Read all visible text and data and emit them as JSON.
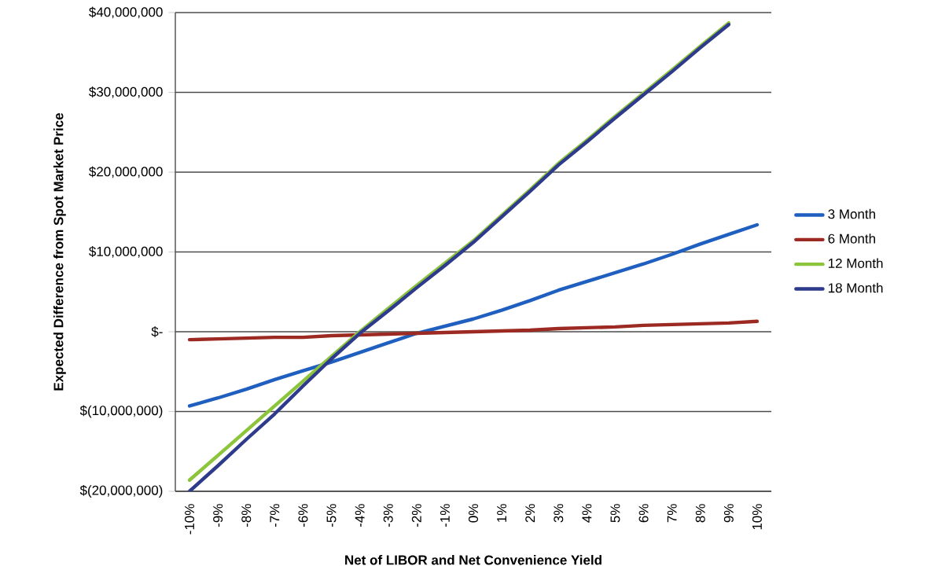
{
  "chart_data": {
    "type": "line",
    "xlabel": "Net of LIBOR and Net Convenience Yield",
    "ylabel": "Expected Difference from Spot Market Price",
    "categories": [
      "-10%",
      "-9%",
      "-8%",
      "-7%",
      "-6%",
      "-5%",
      "-4%",
      "-3%",
      "-2%",
      "-1%",
      "0%",
      "1%",
      "2%",
      "3%",
      "4%",
      "5%",
      "6%",
      "7%",
      "8%",
      "9%",
      "10%"
    ],
    "series": [
      {
        "name": "3 Month",
        "color": "#1f5fbf",
        "values": [
          -9300000,
          -8300000,
          -7200000,
          -6000000,
          -4900000,
          -3800000,
          -2600000,
          -1400000,
          -200000,
          700000,
          1600000,
          2700000,
          3900000,
          5200000,
          6300000,
          7400000,
          8500000,
          9700000,
          11000000,
          12200000,
          13400000
        ]
      },
      {
        "name": "6 Month",
        "color": "#9c2a22",
        "values": [
          -1000000,
          -900000,
          -800000,
          -700000,
          -700000,
          -500000,
          -400000,
          -300000,
          -200000,
          -100000,
          0,
          100000,
          200000,
          400000,
          500000,
          600000,
          800000,
          900000,
          1000000,
          1100000,
          1300000
        ]
      },
      {
        "name": "12 Month",
        "color": "#8cc43c",
        "values": [
          -18600000,
          -15500000,
          -12400000,
          -9300000,
          -6200000,
          -3100000,
          0,
          2900000,
          5800000,
          8600000,
          11400000,
          14600000,
          17800000,
          21100000,
          24000000,
          27000000,
          29900000,
          32800000,
          35800000,
          38700000,
          null
        ]
      },
      {
        "name": "18 Month",
        "color": "#2e3a8c",
        "values": [
          -20000000,
          -16800000,
          -13500000,
          -10300000,
          -6800000,
          -3400000,
          -200000,
          2600000,
          5500000,
          8300000,
          11200000,
          14400000,
          17600000,
          20900000,
          23800000,
          26800000,
          29700000,
          32600000,
          35600000,
          38500000,
          null
        ]
      }
    ],
    "ylim": [
      -20000000,
      40000000
    ],
    "yticks": [
      {
        "value": -20000000,
        "label": "$(20,000,000)"
      },
      {
        "value": -10000000,
        "label": "$(10,000,000)"
      },
      {
        "value": 0,
        "label": "$-"
      },
      {
        "value": 10000000,
        "label": "$10,000,000"
      },
      {
        "value": 20000000,
        "label": "$20,000,000"
      },
      {
        "value": 30000000,
        "label": "$30,000,000"
      },
      {
        "value": 40000000,
        "label": "$40,000,000"
      }
    ],
    "grid": "y",
    "legend": "right",
    "marker": "none",
    "line_style": "solid"
  }
}
